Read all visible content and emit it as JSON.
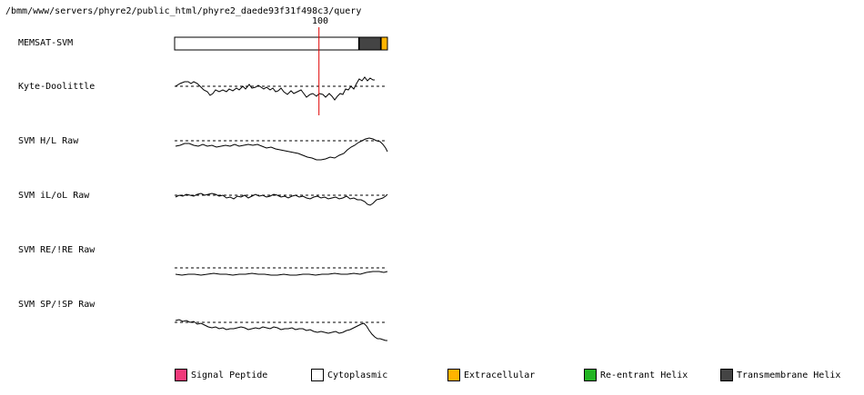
{
  "header": {
    "path": "/bmm/www/servers/phyre2/public_html/phyre2_daede93f31f498c3/query"
  },
  "ruler": {
    "marker_label": "100",
    "marker_position": 100,
    "sequence_length": 147
  },
  "tracks": [
    {
      "label": "MEMSAT-SVM"
    },
    {
      "label": "Kyte-Doolittle"
    },
    {
      "label": "SVM H/L Raw"
    },
    {
      "label": "SVM iL/oL Raw"
    },
    {
      "label": "SVM RE/!RE Raw"
    },
    {
      "label": "SVM SP/!SP Raw"
    }
  ],
  "topology": [
    {
      "type": "Cytoplasmic",
      "from": 1,
      "to": 127
    },
    {
      "type": "Transmembrane Helix",
      "from": 128,
      "to": 142
    },
    {
      "type": "Extracellular",
      "from": 143,
      "to": 147
    }
  ],
  "colors": {
    "Signal Peptide": "#f0397a",
    "Cytoplasmic": "#ffffff",
    "Extracellular": "#ffb400",
    "Re-entrant Helix": "#22b422",
    "Transmembrane Helix": "#444444",
    "marker": "#e00000"
  },
  "legend": [
    {
      "label": "Signal Peptide",
      "color": "#f0397a"
    },
    {
      "label": "Cytoplasmic",
      "color": "#ffffff"
    },
    {
      "label": "Extracellular",
      "color": "#ffb400"
    },
    {
      "label": "Re-entrant Helix",
      "color": "#22b422"
    },
    {
      "label": "Transmembrane Helix",
      "color": "#444444"
    }
  ]
}
